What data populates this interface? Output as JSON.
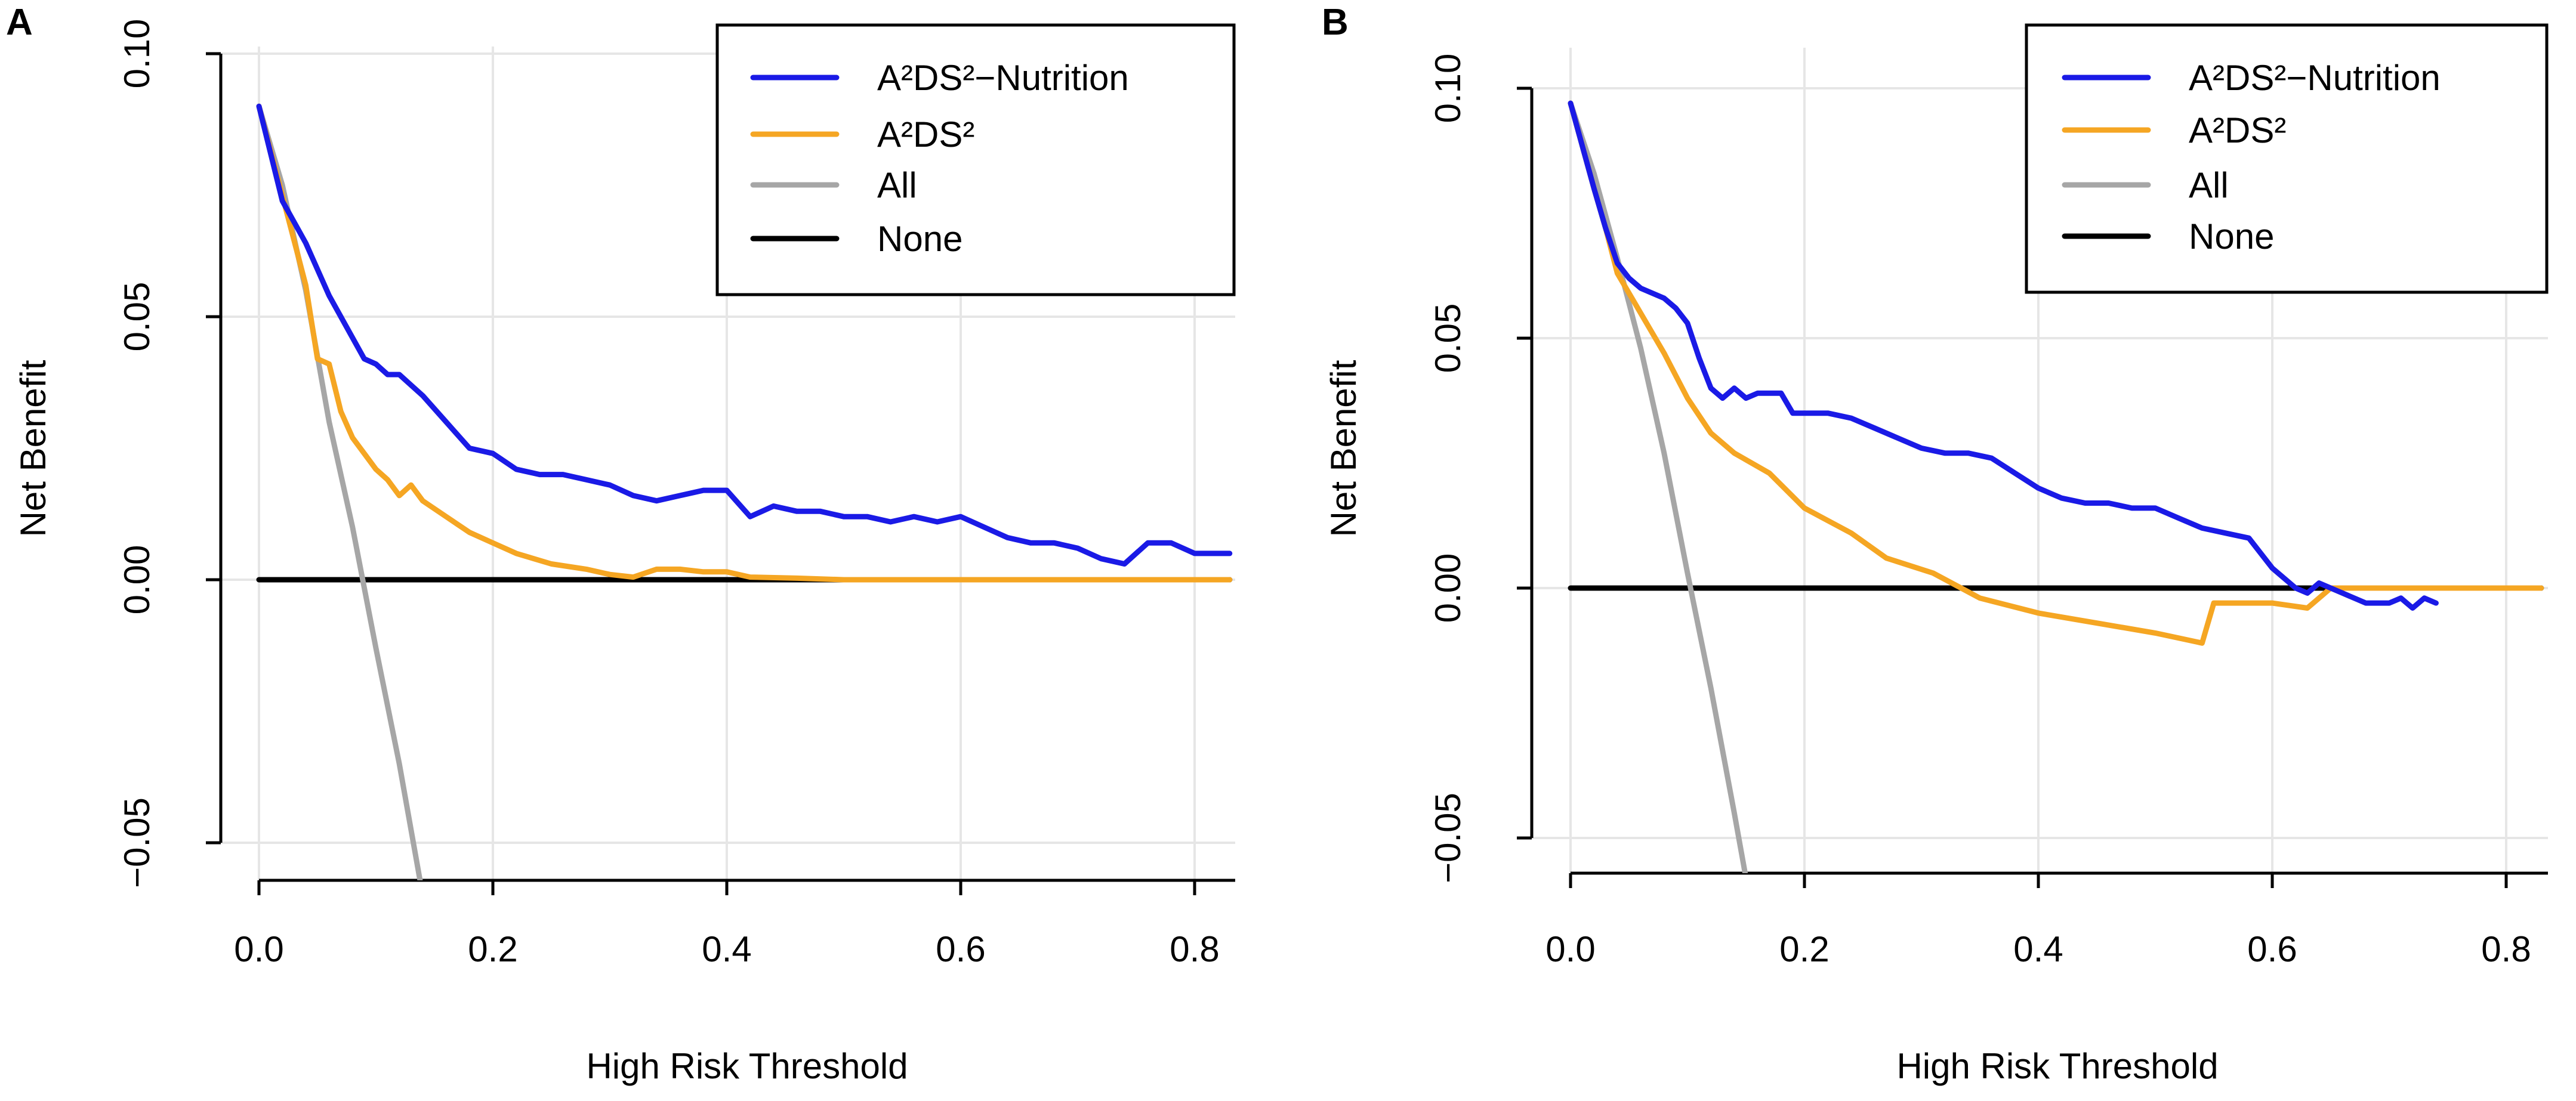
{
  "chart_data": [
    {
      "panel_label": "A",
      "type": "line",
      "title": "",
      "xlabel": "High Risk Threshold",
      "ylabel": "Net Benefit",
      "xlim": [
        0,
        0.83
      ],
      "ylim": [
        -0.055,
        0.1
      ],
      "xticks": [
        0.0,
        0.2,
        0.4,
        0.6,
        0.8
      ],
      "xtick_labels": [
        "0.0",
        "0.2",
        "0.4",
        "0.6",
        "0.8"
      ],
      "yticks": [
        -0.05,
        0.0,
        0.05,
        0.1
      ],
      "ytick_labels": [
        "−0.05",
        "0.00",
        "0.05",
        "0.10"
      ],
      "grid": true,
      "legend_position": "top-right",
      "series": [
        {
          "name": "A²DS²−Nutrition",
          "color": "#1a1ae6",
          "x": [
            0.0,
            0.02,
            0.04,
            0.06,
            0.08,
            0.09,
            0.1,
            0.11,
            0.12,
            0.13,
            0.14,
            0.16,
            0.18,
            0.2,
            0.22,
            0.24,
            0.26,
            0.28,
            0.3,
            0.32,
            0.34,
            0.36,
            0.38,
            0.4,
            0.42,
            0.44,
            0.46,
            0.48,
            0.5,
            0.52,
            0.54,
            0.56,
            0.58,
            0.6,
            0.62,
            0.64,
            0.66,
            0.68,
            0.7,
            0.72,
            0.74,
            0.76,
            0.78,
            0.8,
            0.83
          ],
          "y": [
            0.09,
            0.072,
            0.064,
            0.054,
            0.046,
            0.042,
            0.041,
            0.039,
            0.039,
            0.037,
            0.035,
            0.03,
            0.025,
            0.024,
            0.021,
            0.02,
            0.02,
            0.019,
            0.018,
            0.016,
            0.015,
            0.016,
            0.017,
            0.017,
            0.012,
            0.014,
            0.013,
            0.013,
            0.012,
            0.012,
            0.011,
            0.012,
            0.011,
            0.012,
            0.01,
            0.008,
            0.007,
            0.007,
            0.006,
            0.004,
            0.003,
            0.007,
            0.007,
            0.005,
            0.005
          ]
        },
        {
          "name": "A²DS²",
          "color": "#f5a623",
          "x": [
            0.0,
            0.02,
            0.04,
            0.05,
            0.06,
            0.07,
            0.08,
            0.09,
            0.1,
            0.11,
            0.12,
            0.13,
            0.14,
            0.16,
            0.18,
            0.2,
            0.22,
            0.25,
            0.28,
            0.3,
            0.32,
            0.34,
            0.36,
            0.38,
            0.4,
            0.42,
            0.46,
            0.5,
            0.6,
            0.7,
            0.83
          ],
          "y": [
            0.09,
            0.073,
            0.056,
            0.042,
            0.041,
            0.032,
            0.027,
            0.024,
            0.021,
            0.019,
            0.016,
            0.018,
            0.015,
            0.012,
            0.009,
            0.007,
            0.005,
            0.003,
            0.002,
            0.001,
            0.0005,
            0.002,
            0.002,
            0.0015,
            0.0015,
            0.0005,
            0.0003,
            0.0,
            0.0,
            0.0,
            0.0
          ]
        },
        {
          "name": "All",
          "color": "#a6a6a6",
          "x": [
            0.0,
            0.02,
            0.04,
            0.06,
            0.08,
            0.1,
            0.12,
            0.14
          ],
          "y": [
            0.09,
            0.075,
            0.055,
            0.03,
            0.01,
            -0.013,
            -0.035,
            -0.06
          ]
        },
        {
          "name": "None",
          "color": "#000000",
          "x": [
            0.0,
            0.83
          ],
          "y": [
            0.0,
            0.0
          ]
        }
      ]
    },
    {
      "panel_label": "B",
      "type": "line",
      "title": "",
      "xlabel": "High Risk Threshold",
      "ylabel": "Net Benefit",
      "xlim": [
        0,
        0.83
      ],
      "ylim": [
        -0.058,
        0.1
      ],
      "xticks": [
        0.0,
        0.2,
        0.4,
        0.6,
        0.8
      ],
      "xtick_labels": [
        "0.0",
        "0.2",
        "0.4",
        "0.6",
        "0.8"
      ],
      "yticks": [
        -0.05,
        0.0,
        0.05,
        0.1
      ],
      "ytick_labels": [
        "−0.05",
        "0.00",
        "0.05",
        "0.10"
      ],
      "grid": true,
      "legend_position": "top-right",
      "series": [
        {
          "name": "A²DS²−Nutrition",
          "color": "#1a1ae6",
          "x": [
            0.0,
            0.02,
            0.03,
            0.04,
            0.05,
            0.06,
            0.07,
            0.08,
            0.09,
            0.1,
            0.11,
            0.12,
            0.13,
            0.14,
            0.15,
            0.16,
            0.18,
            0.19,
            0.2,
            0.22,
            0.24,
            0.26,
            0.28,
            0.3,
            0.32,
            0.34,
            0.36,
            0.38,
            0.4,
            0.42,
            0.44,
            0.46,
            0.48,
            0.5,
            0.52,
            0.54,
            0.56,
            0.58,
            0.6,
            0.62,
            0.63,
            0.64,
            0.66,
            0.68,
            0.7,
            0.71,
            0.72,
            0.73,
            0.74
          ],
          "y": [
            0.097,
            0.08,
            0.072,
            0.065,
            0.062,
            0.06,
            0.059,
            0.058,
            0.056,
            0.053,
            0.046,
            0.04,
            0.038,
            0.04,
            0.038,
            0.039,
            0.039,
            0.035,
            0.035,
            0.035,
            0.034,
            0.032,
            0.03,
            0.028,
            0.027,
            0.027,
            0.026,
            0.023,
            0.02,
            0.018,
            0.017,
            0.017,
            0.016,
            0.016,
            0.014,
            0.012,
            0.011,
            0.01,
            0.004,
            0.0,
            -0.001,
            0.001,
            -0.001,
            -0.003,
            -0.003,
            -0.002,
            -0.004,
            -0.002,
            -0.003
          ]
        },
        {
          "name": "A²DS²",
          "color": "#f5a623",
          "x": [
            0.0,
            0.02,
            0.03,
            0.04,
            0.06,
            0.08,
            0.1,
            0.12,
            0.14,
            0.17,
            0.2,
            0.24,
            0.27,
            0.31,
            0.35,
            0.4,
            0.45,
            0.5,
            0.54,
            0.55,
            0.6,
            0.63,
            0.65,
            0.7,
            0.83
          ],
          "y": [
            0.097,
            0.08,
            0.072,
            0.063,
            0.055,
            0.047,
            0.038,
            0.031,
            0.027,
            0.023,
            0.016,
            0.011,
            0.006,
            0.003,
            -0.002,
            -0.005,
            -0.007,
            -0.009,
            -0.011,
            -0.003,
            -0.003,
            -0.004,
            0.0,
            0.0,
            0.0
          ]
        },
        {
          "name": "All",
          "color": "#a6a6a6",
          "x": [
            0.0,
            0.02,
            0.04,
            0.06,
            0.08,
            0.1,
            0.12,
            0.14,
            0.15
          ],
          "y": [
            0.097,
            0.083,
            0.066,
            0.048,
            0.027,
            0.003,
            -0.02,
            -0.045,
            -0.058
          ]
        },
        {
          "name": "None",
          "color": "#000000",
          "x": [
            0.0,
            0.83
          ],
          "y": [
            0.0,
            0.0
          ]
        }
      ]
    }
  ]
}
